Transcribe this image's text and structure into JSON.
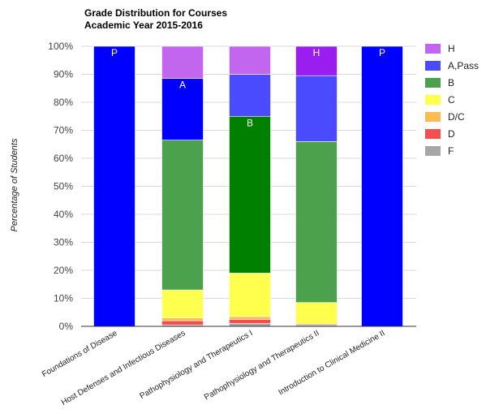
{
  "chart_data": {
    "type": "bar",
    "stacked": true,
    "title": "Grade Distribution for Courses",
    "subtitle": "Academic Year 2015-2016",
    "ylabel": "Percentage of Students",
    "xlabel": "",
    "ylim": [
      0,
      100
    ],
    "yticks": [
      "0%",
      "10%",
      "20%",
      "30%",
      "40%",
      "50%",
      "60%",
      "70%",
      "80%",
      "90%",
      "100%"
    ],
    "grid": true,
    "legend_position": "right",
    "categories": [
      "Foundations of Disease",
      "Host Defenses and Infectious Diseases",
      "Pathophysiology and Therapeutics I",
      "Pathophysiology and Therapeutics II",
      "Introduction to Clinical Medicine II"
    ],
    "series": [
      {
        "name": "F",
        "color": "#a6a6a6",
        "values": [
          0,
          0.5,
          1.0,
          0.5,
          0
        ]
      },
      {
        "name": "D",
        "color": "#f44e4e",
        "values": [
          0,
          1.5,
          1.5,
          0,
          0
        ]
      },
      {
        "name": "D/C",
        "color": "#fbbc51",
        "values": [
          0,
          1.0,
          1.0,
          0.5,
          0
        ]
      },
      {
        "name": "C",
        "color": "#ffff4d",
        "values": [
          0,
          10,
          15.5,
          7.5,
          0
        ]
      },
      {
        "name": "B",
        "color": "#4ca24c",
        "values": [
          0,
          53.5,
          56,
          57.5,
          0
        ]
      },
      {
        "name": "A,Pass",
        "color": "#4a4aff",
        "values": [
          100,
          22,
          15,
          23.5,
          100
        ]
      },
      {
        "name": "H",
        "color": "#c266f0",
        "values": [
          0,
          11.5,
          10,
          10.5,
          0
        ]
      }
    ],
    "emphasized_segments": [
      {
        "category": "Foundations of Disease",
        "series": "A,Pass",
        "color": "#0000ff",
        "label": "P"
      },
      {
        "category": "Host Defenses and Infectious Diseases",
        "series": "A,Pass",
        "color": "#0000ff",
        "label": "A"
      },
      {
        "category": "Pathophysiology and Therapeutics I",
        "series": "B",
        "color": "#008000",
        "label": "B"
      },
      {
        "category": "Pathophysiology and Therapeutics II",
        "series": "H",
        "color": "#9b1ef0",
        "label": "H"
      },
      {
        "category": "Introduction to Clinical Medicine II",
        "series": "A,Pass",
        "color": "#0000ff",
        "label": "P"
      }
    ],
    "legend_order": [
      "H",
      "A,Pass",
      "B",
      "C",
      "D/C",
      "D",
      "F"
    ]
  }
}
